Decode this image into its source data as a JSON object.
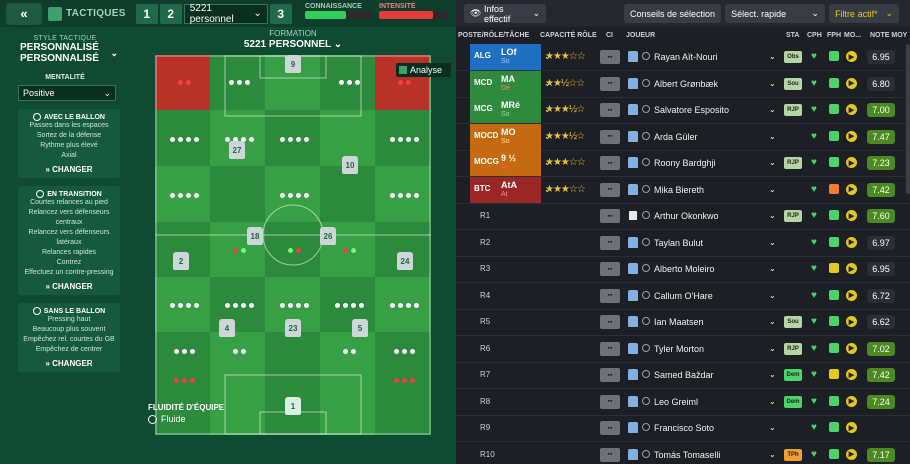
{
  "topbar": {
    "title": "TACTIQUES",
    "tabs": [
      "1",
      "2",
      "3"
    ],
    "tactic_selected": "5221 personnel",
    "knowledge_label": "CONNAISSANCE",
    "knowledge_level": 0.6,
    "intensity_label": "INTENSITÉ",
    "intensity_level": 0.8
  },
  "left": {
    "style_label": "STYLE TACTIQUE",
    "style_line1": "PERSONNALISÉ",
    "style_line2": "PERSONNALISÉ",
    "mentality_label": "MENTALITÉ",
    "mentality_value": "Positive",
    "phases": [
      {
        "title": "AVEC LE BALLON",
        "items": [
          "Passes dans les espaces",
          "Sortez de la défense",
          "Rythme plus élevé",
          "Axial"
        ],
        "button": "CHANGER"
      },
      {
        "title": "EN TRANSITION",
        "items": [
          "Courtes relances au pied",
          "Relancez vers défenseurs centraux",
          "Relancez vers défenseurs latéraux",
          "Relances rapides",
          "Contrez",
          "Effectuez un contre-pressing"
        ],
        "button": "CHANGER"
      },
      {
        "title": "SANS LE BALLON",
        "items": [
          "Pressing haut",
          "Beaucoup plus souvent",
          "Empêchez rel. courtes du GB",
          "Empêchez de centrer"
        ],
        "button": "CHANGER"
      }
    ]
  },
  "pitch": {
    "formation_label": "FORMATION",
    "formation_name": "5221 PERSONNEL",
    "analyse_label": "Analyse",
    "fluidity_label": "FLUIDITÉ D'ÉQUIPE",
    "fluidity_value": "Fluide",
    "player_numbers": [
      "9",
      "27",
      "10",
      "18",
      "26",
      "2",
      "24",
      "4",
      "23",
      "5",
      "1"
    ]
  },
  "right": {
    "buttons": {
      "info": "Infos effectif",
      "advice": "Conseils de sélection",
      "quick": "Sélect. rapide",
      "filter": "Filtre actif*"
    },
    "headers": {
      "role": "POSTE/RÔLE/TÂCHE",
      "ability": "CAPACITÉ RÔLE",
      "ci": "CI",
      "player": "JOUEUR",
      "sta": "STA",
      "cph": "CPH",
      "fph": "FPH",
      "mo": "MO...",
      "note": "NOTE MOY"
    },
    "rows": [
      {
        "pos": "ALG",
        "role": "LOf",
        "duty": "So",
        "color": "#1f6fc2",
        "dutycolor": "#9fc8ff",
        "stars": "★★★☆☆",
        "player": "Rayan Aït-Nouri",
        "sta": "Obs",
        "stacol": "#b4d6a2",
        "fph": "#4cd36b",
        "mo": "▶",
        "note": "6.95",
        "notecol": "#2a2e35"
      },
      {
        "pos": "MCD",
        "role": "MA",
        "duty": "Dé",
        "color": "#2e8a3c",
        "dutycolor": "#ff8c5a",
        "stars": "★★½☆☆",
        "player": "Albert Grønbæk",
        "sta": "Sou",
        "stacol": "#b4d6a2",
        "fph": "#4cd36b",
        "mo": "▶",
        "note": "6.80",
        "notecol": "#2a2e35"
      },
      {
        "pos": "MCG",
        "role": "MRé",
        "duty": "So",
        "color": "#2e8a3c",
        "dutycolor": "#9fd6b5",
        "stars": "★★★½☆",
        "player": "Salvatore Esposito",
        "sta": "RJP",
        "stacol": "#b4d6a2",
        "fph": "#4cd36b",
        "mo": "▶",
        "note": "7.00",
        "notecol": "#4b8a1e"
      },
      {
        "pos": "MOCD",
        "role": "MO",
        "duty": "So",
        "color": "#c66a12",
        "dutycolor": "#ffe0a0",
        "stars": "★★★½☆",
        "player": "Arda Güler",
        "sta": "",
        "stacol": "",
        "fph": "#4cd36b",
        "mo": "▶",
        "note": "7.47",
        "notecol": "#4b8a1e"
      },
      {
        "pos": "MOCG",
        "role": "9 ½",
        "duty": "At",
        "color": "#c66a12",
        "dutycolor": "#ff5a4a",
        "stars": "★★★☆☆",
        "player": "Roony Bardghji",
        "sta": "RJP",
        "stacol": "#b4d6a2",
        "fph": "#4cd36b",
        "mo": "▶",
        "note": "7.23",
        "notecol": "#4b8a1e"
      },
      {
        "pos": "BTC",
        "role": "AtA",
        "duty": "At",
        "color": "#9a2626",
        "dutycolor": "#ff8c8c",
        "stars": "★★★☆☆",
        "player": "Mika Biereth",
        "sta": "",
        "stacol": "",
        "fph": "#f08030",
        "mo": "▶",
        "note": "7.42",
        "notecol": "#4b8a1e"
      },
      {
        "pos": "R1",
        "role": "",
        "duty": "",
        "color": "",
        "dutycolor": "",
        "stars": "",
        "player": "Arthur Okonkwo",
        "sta": "RJP",
        "stacol": "#b4d6a2",
        "fph": "#4cd36b",
        "mo": "▶",
        "note": "7.60",
        "notecol": "#4b8a1e"
      },
      {
        "pos": "R2",
        "role": "",
        "duty": "",
        "color": "",
        "dutycolor": "",
        "stars": "",
        "player": "Taylan Bulut",
        "sta": "",
        "stacol": "",
        "fph": "#4cd36b",
        "mo": "▶",
        "note": "6.97",
        "notecol": "#2a2e35"
      },
      {
        "pos": "R3",
        "role": "",
        "duty": "",
        "color": "",
        "dutycolor": "",
        "stars": "",
        "player": "Alberto Moleiro",
        "sta": "",
        "stacol": "",
        "fph": "#e5c81f",
        "mo": "▶",
        "note": "6.95",
        "notecol": "#2a2e35"
      },
      {
        "pos": "R4",
        "role": "",
        "duty": "",
        "color": "",
        "dutycolor": "",
        "stars": "",
        "player": "Callum O'Hare",
        "sta": "",
        "stacol": "",
        "fph": "#4cd36b",
        "mo": "▶",
        "note": "6.72",
        "notecol": "#2a2e35"
      },
      {
        "pos": "R5",
        "role": "",
        "duty": "",
        "color": "",
        "dutycolor": "",
        "stars": "",
        "player": "Ian Maatsen",
        "sta": "Sou",
        "stacol": "#b4d6a2",
        "fph": "#4cd36b",
        "mo": "▶",
        "note": "6.62",
        "notecol": "#2a2e35"
      },
      {
        "pos": "R6",
        "role": "",
        "duty": "",
        "color": "",
        "dutycolor": "",
        "stars": "",
        "player": "Tyler Morton",
        "sta": "RJP",
        "stacol": "#b4d6a2",
        "fph": "#4cd36b",
        "mo": "▶",
        "note": "7.02",
        "notecol": "#4b8a1e"
      },
      {
        "pos": "R7",
        "role": "",
        "duty": "",
        "color": "",
        "dutycolor": "",
        "stars": "",
        "player": "Samed Baždar",
        "sta": "Dem",
        "stacol": "#4cd36b",
        "fph": "#e5c81f",
        "mo": "▶",
        "note": "7.42",
        "notecol": "#4b8a1e"
      },
      {
        "pos": "R8",
        "role": "",
        "duty": "",
        "color": "",
        "dutycolor": "",
        "stars": "",
        "player": "Leo Greiml",
        "sta": "Dem",
        "stacol": "#4cd36b",
        "fph": "#4cd36b",
        "mo": "▶",
        "note": "7.24",
        "notecol": "#4b8a1e"
      },
      {
        "pos": "R9",
        "role": "",
        "duty": "",
        "color": "",
        "dutycolor": "",
        "stars": "",
        "player": "Francisco Soto",
        "sta": "",
        "stacol": "",
        "fph": "#4cd36b",
        "mo": "▶",
        "note": "",
        "notecol": ""
      },
      {
        "pos": "R10",
        "role": "",
        "duty": "",
        "color": "",
        "dutycolor": "",
        "stars": "",
        "player": "Tomás Tomaselli",
        "sta": "TPh",
        "stacol": "#f0a030",
        "fph": "#4cd36b",
        "mo": "▶",
        "note": "7.17",
        "notecol": "#4b8a1e"
      }
    ]
  }
}
